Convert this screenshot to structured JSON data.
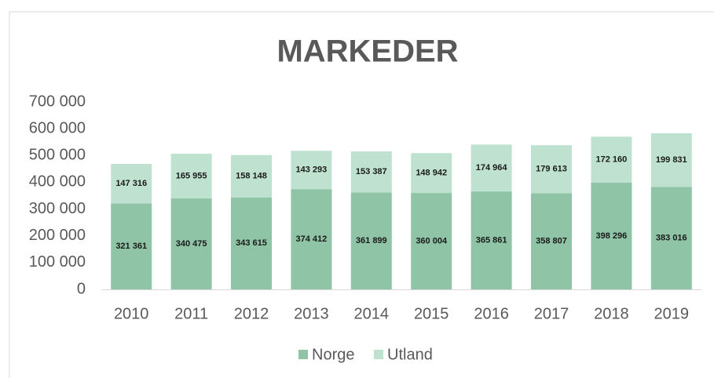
{
  "chart_data": {
    "type": "stacked_bar",
    "title": "MARKEDER",
    "categories": [
      "2010",
      "2011",
      "2012",
      "2013",
      "2014",
      "2015",
      "2016",
      "2017",
      "2018",
      "2019"
    ],
    "series": [
      {
        "name": "Norge",
        "color": "#8fc4a7",
        "values": [
          321361,
          340475,
          343615,
          374412,
          361899,
          360004,
          365861,
          358807,
          398296,
          383016
        ],
        "value_labels": [
          "321 361",
          "340 475",
          "343 615",
          "374 412",
          "361 899",
          "360 004",
          "365 861",
          "358 807",
          "398 296",
          "383 016"
        ]
      },
      {
        "name": "Utland",
        "color": "#bfe2d0",
        "values": [
          147316,
          165955,
          158148,
          143293,
          153387,
          148942,
          174964,
          179613,
          172160,
          199831
        ],
        "value_labels": [
          "147 316",
          "165 955",
          "158 148",
          "143 293",
          "153 387",
          "148 942",
          "174 964",
          "179 613",
          "172 160",
          "199 831"
        ]
      }
    ],
    "ylim": [
      0,
      700000
    ],
    "yticks": [
      0,
      {
        "value": 100000,
        "label": "100 000"
      },
      {
        "value": 200000,
        "label": "200 000"
      },
      {
        "value": 300000,
        "label": "300 000"
      },
      {
        "value": 400000,
        "label": "400 000"
      },
      {
        "value": 500000,
        "label": "500 000"
      },
      {
        "value": 600000,
        "label": "600 000"
      },
      {
        "value": 700000,
        "label": "700 000"
      }
    ],
    "grid": false,
    "legend": "bottom"
  }
}
